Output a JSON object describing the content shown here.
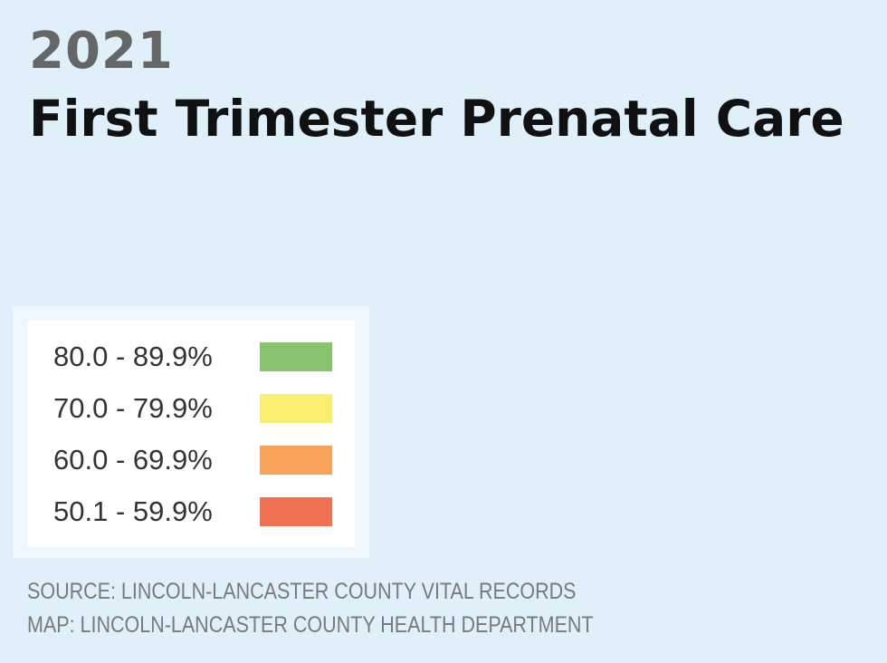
{
  "header": {
    "year": "2021",
    "title": "First Trimester Prenatal Care"
  },
  "legend": {
    "items": [
      {
        "label": "80.0 - 89.9%",
        "color": "#86c46f"
      },
      {
        "label": "70.0 - 79.9%",
        "color": "#fbee6e"
      },
      {
        "label": "60.0 - 69.9%",
        "color": "#f7a35c"
      },
      {
        "label": "50.1 - 59.9%",
        "color": "#f07052"
      }
    ]
  },
  "footer": {
    "source": "SOURCE: LINCOLN-LANCASTER COUNTY VITAL RECORDS",
    "map_credit": "MAP: LINCOLN-LANCASTER COUNTY HEALTH DEPARTMENT"
  }
}
